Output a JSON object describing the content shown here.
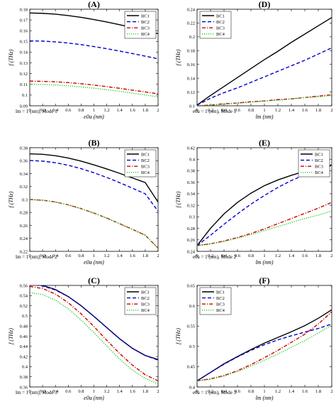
{
  "figure": {
    "legend_labels": [
      "BC1",
      "BC2",
      "BC3",
      "BC4"
    ],
    "series_colors": {
      "BC1": "#000000",
      "BC2": "#0000cc",
      "BC3": "#cc0000",
      "BC4": "#22cc22"
    },
    "series_dash": {
      "BC1": "solid",
      "BC2": "dashed",
      "BC3": "dash-dot",
      "BC4": "dotted"
    }
  },
  "chart_data": [
    {
      "id": "A",
      "type": "line",
      "title": "(A)",
      "xlabel": "e0a (nm)",
      "ylabel": "f (THz)",
      "annotation": "lm = 1 (nm), Mode 1",
      "xlim": [
        0,
        2
      ],
      "ylim": [
        0.09,
        0.18
      ],
      "xticks": [
        "0",
        "0.2",
        "0.4",
        "0.6",
        "0.8",
        "1",
        "1.2",
        "1.4",
        "1.6",
        "1.8",
        "2"
      ],
      "yticks": [
        "0.09",
        "0.1",
        "0.11",
        "0.12",
        "0.13",
        "0.14",
        "0.15",
        "0.16",
        "0.17",
        "0.18"
      ],
      "legend": "top-right",
      "x": [
        0,
        0.2,
        0.4,
        0.6,
        0.8,
        1.0,
        1.2,
        1.4,
        1.6,
        1.8,
        2.0
      ],
      "series": [
        {
          "name": "BC1",
          "values": [
            0.1765,
            0.1762,
            0.1754,
            0.1741,
            0.1724,
            0.1704,
            0.1681,
            0.1656,
            0.1629,
            0.1601,
            0.1572
          ]
        },
        {
          "name": "BC2",
          "values": [
            0.1505,
            0.1503,
            0.1496,
            0.1485,
            0.147,
            0.1452,
            0.1432,
            0.141,
            0.1387,
            0.1363,
            0.1338
          ]
        },
        {
          "name": "BC3",
          "values": [
            0.113,
            0.1128,
            0.1124,
            0.1116,
            0.1106,
            0.1093,
            0.1079,
            0.1063,
            0.1046,
            0.1029,
            0.1011
          ]
        },
        {
          "name": "BC4",
          "values": [
            0.11,
            0.1098,
            0.1094,
            0.1086,
            0.1076,
            0.1064,
            0.105,
            0.1035,
            0.1018,
            0.1001,
            0.0983
          ]
        }
      ]
    },
    {
      "id": "D",
      "type": "line",
      "title": "(D)",
      "xlabel": "lm (nm)",
      "ylabel": "f (THz)",
      "annotation": "e0a = 1 (nm), Mode 1",
      "xlim": [
        0,
        2
      ],
      "ylim": [
        0.1,
        0.24
      ],
      "xticks": [
        "0",
        "0.2",
        "0.4",
        "0.6",
        "0.8",
        "1",
        "1.2",
        "1.4",
        "1.6",
        "1.8",
        "2"
      ],
      "yticks": [
        "0.1",
        "0.12",
        "0.14",
        "0.16",
        "0.18",
        "0.2",
        "0.22",
        "0.24"
      ],
      "legend": "top-left",
      "x": [
        0,
        0.2,
        0.4,
        0.6,
        0.8,
        1.0,
        1.2,
        1.4,
        1.6,
        1.8,
        2.0
      ],
      "series": [
        {
          "name": "BC1",
          "values": [
            0.101,
            0.115,
            0.128,
            0.141,
            0.154,
            0.167,
            0.179,
            0.192,
            0.204,
            0.216,
            0.228
          ]
        },
        {
          "name": "BC2",
          "values": [
            0.101,
            0.111,
            0.119,
            0.126,
            0.134,
            0.142,
            0.15,
            0.158,
            0.166,
            0.175,
            0.184
          ]
        },
        {
          "name": "BC3",
          "values": [
            0.1,
            0.101,
            0.103,
            0.104,
            0.106,
            0.107,
            0.109,
            0.11,
            0.112,
            0.114,
            0.116
          ]
        },
        {
          "name": "BC4",
          "values": [
            0.1,
            0.101,
            0.102,
            0.104,
            0.105,
            0.107,
            0.108,
            0.11,
            0.112,
            0.113,
            0.115
          ]
        }
      ]
    },
    {
      "id": "B",
      "type": "line",
      "title": "(B)",
      "xlabel": "e0a (nm)",
      "ylabel": "f (THz)",
      "annotation": "lm = 1 (nm), Mode 2",
      "xlim": [
        0,
        2
      ],
      "ylim": [
        0.22,
        0.38
      ],
      "xticks": [
        "0",
        "0.2",
        "0.4",
        "0.6",
        "0.8",
        "1",
        "1.2",
        "1.4",
        "1.6",
        "1.8",
        "2"
      ],
      "yticks": [
        "0.22",
        "0.24",
        "0.26",
        "0.28",
        "0.3",
        "0.32",
        "0.34",
        "0.36",
        "0.38"
      ],
      "legend": "top-right",
      "x": [
        0,
        0.2,
        0.4,
        0.6,
        0.8,
        1.0,
        1.2,
        1.4,
        1.6,
        1.8,
        2.0
      ],
      "series": [
        {
          "name": "BC1",
          "values": [
            0.3705,
            0.3698,
            0.3676,
            0.364,
            0.3592,
            0.3535,
            0.3472,
            0.3404,
            0.3333,
            0.3262,
            0.296
          ]
        },
        {
          "name": "BC2",
          "values": [
            0.3602,
            0.3593,
            0.3568,
            0.3529,
            0.3476,
            0.3413,
            0.334,
            0.326,
            0.3175,
            0.3088,
            0.282
          ]
        },
        {
          "name": "BC3",
          "values": [
            0.3,
            0.299,
            0.2962,
            0.2918,
            0.286,
            0.2791,
            0.2713,
            0.2628,
            0.254,
            0.245,
            0.225
          ]
        },
        {
          "name": "BC4",
          "values": [
            0.2998,
            0.2988,
            0.296,
            0.2916,
            0.2858,
            0.2789,
            0.2711,
            0.2626,
            0.2538,
            0.2448,
            0.2248
          ]
        }
      ]
    },
    {
      "id": "E",
      "type": "line",
      "title": "(E)",
      "xlabel": "lm (nm)",
      "ylabel": "f (THz)",
      "annotation": "e0a = 1 (nm), Mode 2",
      "xlim": [
        0,
        2
      ],
      "ylim": [
        0.24,
        0.42
      ],
      "xticks": [
        "0",
        "0.2",
        "0.4",
        "0.6",
        "0.8",
        "1",
        "1.2",
        "1.4",
        "1.6",
        "1.8",
        "2"
      ],
      "yticks": [
        "0.24",
        "0.26",
        "0.28",
        "0.3",
        "0.32",
        "0.34",
        "0.36",
        "0.38",
        "0.4",
        "0.42"
      ],
      "legend": "top-right",
      "x": [
        0,
        0.2,
        0.4,
        0.6,
        0.8,
        1.0,
        1.2,
        1.4,
        1.6,
        1.8,
        2.0
      ],
      "series": [
        {
          "name": "BC1",
          "values": [
            0.25,
            0.28,
            0.305,
            0.325,
            0.341,
            0.354,
            0.364,
            0.372,
            0.379,
            0.385,
            0.39
          ]
        },
        {
          "name": "BC2",
          "values": [
            0.25,
            0.268,
            0.287,
            0.305,
            0.322,
            0.337,
            0.351,
            0.363,
            0.373,
            0.381,
            0.389
          ]
        },
        {
          "name": "BC3",
          "values": [
            0.25,
            0.253,
            0.258,
            0.264,
            0.271,
            0.279,
            0.288,
            0.297,
            0.306,
            0.315,
            0.325
          ]
        },
        {
          "name": "BC4",
          "values": [
            0.25,
            0.253,
            0.257,
            0.263,
            0.269,
            0.276,
            0.283,
            0.29,
            0.297,
            0.303,
            0.31
          ]
        }
      ]
    },
    {
      "id": "C",
      "type": "line",
      "title": "(C)",
      "xlabel": "e0a (nm)",
      "ylabel": "f (THz)",
      "annotation": "lm = 1 (nm), Mode 3",
      "xlim": [
        0,
        2
      ],
      "ylim": [
        0.36,
        0.56
      ],
      "xticks": [
        "0",
        "0.2",
        "0.4",
        "0.6",
        "0.8",
        "1",
        "1.2",
        "1.4",
        "1.6",
        "1.8",
        "2"
      ],
      "yticks": [
        "0.36",
        "0.38",
        "0.4",
        "0.42",
        "0.44",
        "0.46",
        "0.48",
        "0.5",
        "0.52",
        "0.54",
        "0.56"
      ],
      "legend": "top-right",
      "x": [
        0,
        0.2,
        0.4,
        0.6,
        0.8,
        1.0,
        1.2,
        1.4,
        1.6,
        1.8,
        2.0
      ],
      "series": [
        {
          "name": "BC1",
          "values": [
            0.563,
            0.56,
            0.552,
            0.538,
            0.52,
            0.499,
            0.477,
            0.455,
            0.436,
            0.422,
            0.414
          ]
        },
        {
          "name": "BC2",
          "values": [
            0.562,
            0.559,
            0.551,
            0.538,
            0.52,
            0.499,
            0.477,
            0.455,
            0.436,
            0.422,
            0.413
          ]
        },
        {
          "name": "BC3",
          "values": [
            0.558,
            0.554,
            0.543,
            0.526,
            0.504,
            0.479,
            0.452,
            0.426,
            0.403,
            0.384,
            0.372
          ]
        },
        {
          "name": "BC4",
          "values": [
            0.546,
            0.542,
            0.531,
            0.514,
            0.492,
            0.467,
            0.441,
            0.415,
            0.393,
            0.377,
            0.366
          ]
        }
      ]
    },
    {
      "id": "F",
      "type": "line",
      "title": "(F)",
      "xlabel": "lm (nm)",
      "ylabel": "f (THz)",
      "annotation": "e0a = 1 (nm), Mode 3",
      "xlim": [
        0,
        2
      ],
      "ylim": [
        0.4,
        0.65
      ],
      "xticks": [
        "0",
        "0.2",
        "0.4",
        "0.6",
        "0.8",
        "1",
        "1.2",
        "1.4",
        "1.6",
        "1.8",
        "2"
      ],
      "yticks": [
        "0.4",
        "0.45",
        "0.5",
        "0.55",
        "0.6",
        "0.65"
      ],
      "legend": "top-left",
      "x": [
        0,
        0.2,
        0.4,
        0.6,
        0.8,
        1.0,
        1.2,
        1.4,
        1.6,
        1.8,
        2.0
      ],
      "series": [
        {
          "name": "BC1",
          "values": [
            0.415,
            0.436,
            0.457,
            0.475,
            0.492,
            0.508,
            0.522,
            0.536,
            0.551,
            0.569,
            0.59
          ]
        },
        {
          "name": "BC2",
          "values": [
            0.415,
            0.436,
            0.456,
            0.474,
            0.49,
            0.504,
            0.516,
            0.526,
            0.535,
            0.544,
            0.555
          ]
        },
        {
          "name": "BC3",
          "values": [
            0.415,
            0.42,
            0.428,
            0.44,
            0.455,
            0.472,
            0.49,
            0.51,
            0.53,
            0.555,
            0.585
          ]
        },
        {
          "name": "BC4",
          "values": [
            0.415,
            0.419,
            0.427,
            0.438,
            0.451,
            0.466,
            0.481,
            0.498,
            0.514,
            0.533,
            0.552
          ]
        }
      ]
    }
  ]
}
